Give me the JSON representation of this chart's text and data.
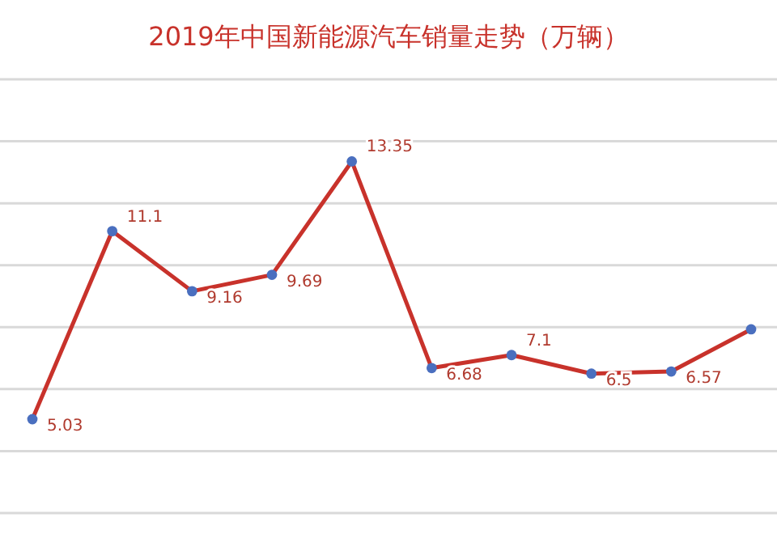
{
  "chart_data": {
    "type": "line",
    "title": "2019年中国新能源汽车销量走势（万辆）",
    "categories": [
      null,
      null,
      null,
      null,
      null,
      null,
      null,
      null,
      null,
      null
    ],
    "series": [
      {
        "color": "#c8322b",
        "values": [
          5.03,
          11.1,
          9.16,
          9.69,
          13.35,
          6.68,
          7.1,
          6.5,
          6.57,
          7.93
        ],
        "value_labels": [
          "5.03",
          "11.1",
          "9.16",
          "9.69",
          "13.35",
          "6.68",
          "7.1",
          "6.5",
          "6.57",
          null
        ]
      }
    ],
    "ylim": [
      2,
      16
    ],
    "yticks": [
      {
        "value": 2,
        "label": null
      },
      {
        "value": 4,
        "label": null
      },
      {
        "value": 6,
        "label": null
      },
      {
        "value": 8,
        "label": null
      },
      {
        "value": 10,
        "label": null
      },
      {
        "value": 12,
        "label": null
      },
      {
        "value": 14,
        "label": null
      },
      {
        "value": 16,
        "label": null
      }
    ],
    "tick_labels": false,
    "grid": "y",
    "marker": "circle"
  }
}
